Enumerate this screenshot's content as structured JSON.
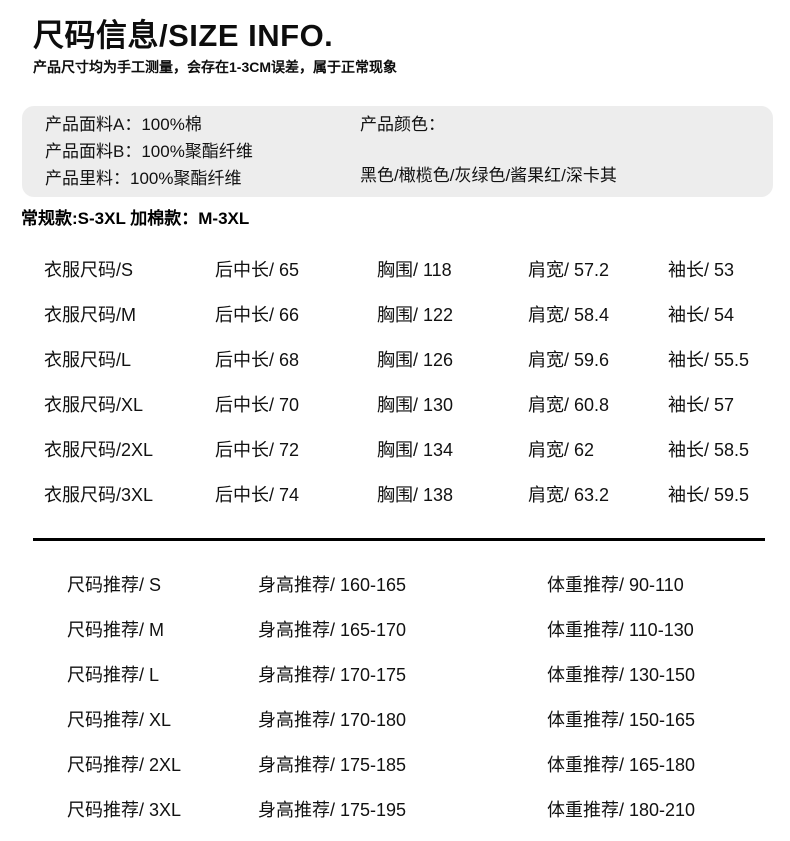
{
  "header": {
    "title": "尺码信息/SIZE INFO.",
    "note": "产品尺寸均为手工测量，会存在1-3CM误差，属于正常现象"
  },
  "product_info": {
    "materials": [
      "产品面料A：100%棉",
      "产品面料B：100%聚酯纤维",
      "产品里料：100%聚酯纤维"
    ],
    "color_label": "产品颜色：",
    "colors": "黑色/橄榄色/灰绿色/酱果红/深卡其"
  },
  "size_range_note": "常规款:S-3XL 加棉款：M-3XL",
  "size_table": {
    "rows": [
      {
        "size": "衣服尺码/S",
        "back_length": "后中长/ 65",
        "chest": "胸围/ 118",
        "shoulder": "肩宽/ 57.2",
        "sleeve": "袖长/ 53"
      },
      {
        "size": "衣服尺码/M",
        "back_length": "后中长/ 66",
        "chest": "胸围/ 122",
        "shoulder": "肩宽/ 58.4",
        "sleeve": "袖长/ 54"
      },
      {
        "size": "衣服尺码/L",
        "back_length": "后中长/ 68",
        "chest": "胸围/ 126",
        "shoulder": "肩宽/ 59.6",
        "sleeve": "袖长/ 55.5"
      },
      {
        "size": "衣服尺码/XL",
        "back_length": "后中长/ 70",
        "chest": "胸围/ 130",
        "shoulder": "肩宽/ 60.8",
        "sleeve": "袖长/ 57"
      },
      {
        "size": "衣服尺码/2XL",
        "back_length": "后中长/ 72",
        "chest": "胸围/ 134",
        "shoulder": "肩宽/ 62",
        "sleeve": "袖长/ 58.5"
      },
      {
        "size": "衣服尺码/3XL",
        "back_length": "后中长/ 74",
        "chest": "胸围/ 138",
        "shoulder": "肩宽/ 63.2",
        "sleeve": "袖长/ 59.5"
      }
    ]
  },
  "recommend_table": {
    "rows": [
      {
        "size": "尺码推荐/ S",
        "height": "身高推荐/ 160-165",
        "weight": "体重推荐/ 90-110"
      },
      {
        "size": "尺码推荐/ M",
        "height": "身高推荐/ 165-170",
        "weight": "体重推荐/ 110-130"
      },
      {
        "size": "尺码推荐/ L",
        "height": "身高推荐/ 170-175",
        "weight": "体重推荐/ 130-150"
      },
      {
        "size": "尺码推荐/ XL",
        "height": "身高推荐/ 170-180",
        "weight": "体重推荐/ 150-165"
      },
      {
        "size": "尺码推荐/ 2XL",
        "height": "身高推荐/ 175-185",
        "weight": "体重推荐/ 165-180"
      },
      {
        "size": "尺码推荐/ 3XL",
        "height": "身高推荐/ 175-195",
        "weight": "体重推荐/ 180-210"
      }
    ]
  },
  "theme": {
    "page_bg": "#ffffff",
    "panel_bg": "#ededed",
    "text_color": "#111111",
    "divider_color": "#000000"
  }
}
